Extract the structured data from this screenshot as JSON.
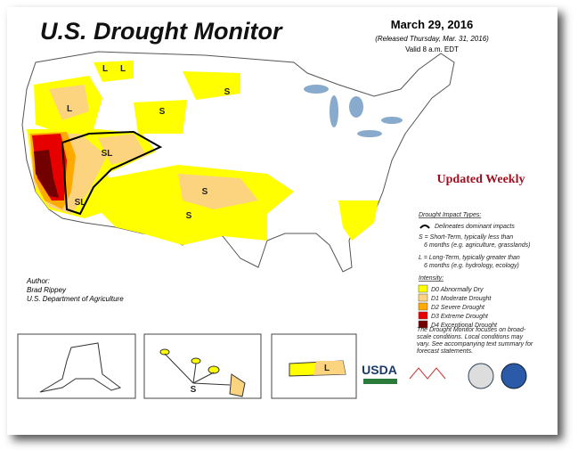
{
  "header": {
    "title": "U.S. Drought Monitor",
    "date": "March 29, 2016",
    "released": "(Released Thursday, Mar. 31, 2016)",
    "valid": "Valid 8 a.m. EDT"
  },
  "updated": "Updated Weekly",
  "impact": {
    "title": "Drought Impact Types:",
    "line": "Delineates dominant impacts",
    "short": [
      "S = Short-Term, typically less than",
      "6 months (e.g. agriculture, grasslands)"
    ],
    "long": [
      "L = Long-Term, typically greater than",
      "6 months (e.g. hydrology, ecology)"
    ]
  },
  "intensity": {
    "title": "Intensity:",
    "items": [
      {
        "label": "D0 Abnormally Dry",
        "color": "#ffff00"
      },
      {
        "label": "D1 Moderate Drought",
        "color": "#fcd37f"
      },
      {
        "label": "D2 Severe Drought",
        "color": "#ffaa00"
      },
      {
        "label": "D3 Extreme Drought",
        "color": "#e60000"
      },
      {
        "label": "D4 Exceptional Drought",
        "color": "#730000"
      }
    ]
  },
  "author": {
    "label": "Author:",
    "name": "Brad Rippey",
    "org": "U.S. Department of Agriculture"
  },
  "footnote": [
    "The Drought Monitor focuses on broad-",
    "scale conditions. Local conditions may",
    "vary. See accompanying text summary for",
    "forecast statements."
  ],
  "logo": "USDA",
  "map": {
    "labels": [
      "L",
      "L",
      "L",
      "S",
      "S",
      "SL",
      "SL",
      "S",
      "S",
      "S",
      "L"
    ]
  }
}
